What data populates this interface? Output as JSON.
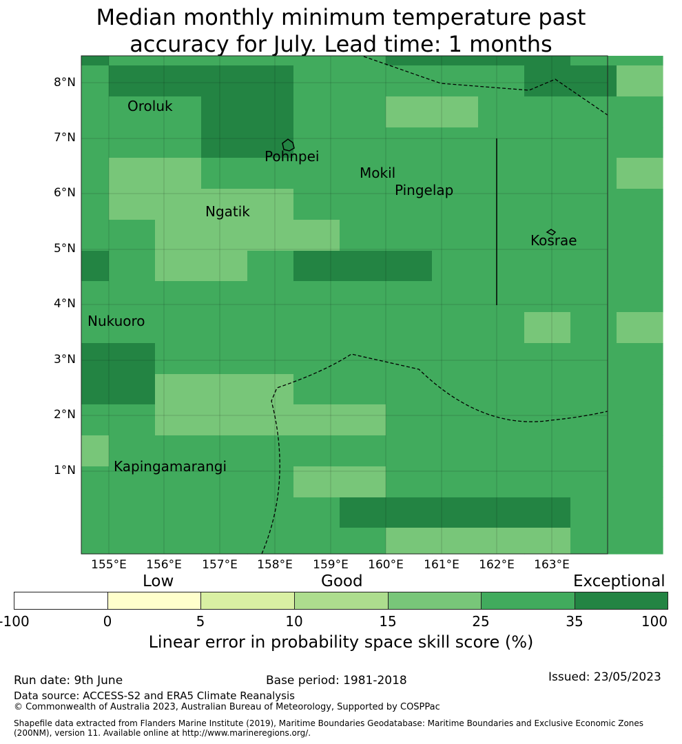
{
  "title": {
    "line1": "Median monthly minimum temperature past",
    "line2": "accuracy for July. Lead time: 1 months"
  },
  "map": {
    "lat_labels": [
      "8°N",
      "7°N",
      "6°N",
      "5°N",
      "4°N",
      "3°N",
      "2°N",
      "1°N"
    ],
    "lon_labels": [
      "155°E",
      "156°E",
      "157°E",
      "158°E",
      "159°E",
      "160°E",
      "161°E",
      "162°E",
      "163°E"
    ],
    "places": [
      "Oroluk",
      "Pohnpei",
      "Mokil",
      "Pingelap",
      "Ngatik",
      "Kosrae",
      "Nukuoro",
      "Kapingamarangi"
    ],
    "category_colors": {
      "c1": "#78c679",
      "c2": "#41ab5d",
      "c3": "#238443"
    },
    "grid_categories": [
      "32222223333222",
      "23333222223311",
      "22233221122222",
      "22233222222222",
      "21122222222211",
      "21111222222221",
      "22111122222222",
      "32112333222222",
      "22222222222222",
      "22222222221212",
      "33222222222222",
      "33111222222222",
      "22111112222222",
      "12222222222222",
      "22222112222222",
      "22222233333222",
      "22222221111222"
    ]
  },
  "legend": {
    "categories": [
      "Low",
      "Good",
      "Exceptional"
    ],
    "ticks": [
      "-100",
      "0",
      "5",
      "10",
      "15",
      "25",
      "35",
      "100"
    ],
    "colors": [
      "#ffffff",
      "#ffffcc",
      "#d9f0a3",
      "#addd8e",
      "#78c679",
      "#41ab5d",
      "#238443"
    ],
    "label": "Linear error in probability space skill score (%)"
  },
  "footer": {
    "run_date": "Run date: 9th June",
    "base_period": "Base period: 1981-2018",
    "issued": "Issued: 23/05/2023",
    "data_source": "Data source: ACCESS-S2 and ERA5 Climate Reanalysis",
    "copyright": "© Commonwealth of Australia 2023, Australian Bureau of Meteorology, Supported by COSPPac",
    "shapefile_line1": "Shapefile data extracted from Flanders Marine Institute (2019), Maritime Boundaries Geodatabase: Maritime Boundaries and Exclusive Economic Zones",
    "shapefile_line2": "(200NM), version 11. Available online at http://www.marineregions.org/."
  }
}
